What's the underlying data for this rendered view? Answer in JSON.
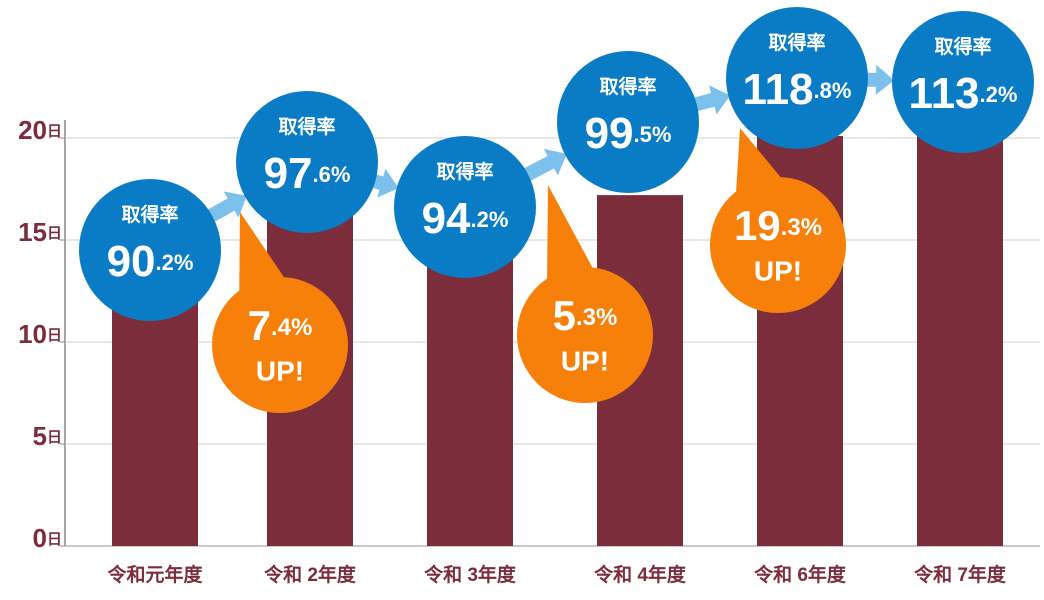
{
  "chart_data": {
    "type": "bar",
    "categories": [
      "令和元年度",
      "令和 2年度",
      "令和 3年度",
      "令和 4年度",
      "令和 6年度",
      "令和 7年度"
    ],
    "values": [
      12.5,
      16.5,
      14.5,
      17.2,
      20.1,
      20.4
    ],
    "color": "#7b2d3c",
    "ylim": [
      0,
      20
    ],
    "yticks": [
      {
        "value": 0,
        "label": "0日"
      },
      {
        "value": 5,
        "label": "5日"
      },
      {
        "value": 10,
        "label": "10日"
      },
      {
        "value": 15,
        "label": "15日"
      },
      {
        "value": 20,
        "label": "20日"
      }
    ],
    "grid": true,
    "rate_bubbles": [
      {
        "title": "取得率",
        "rate": "90.2%"
      },
      {
        "title": "取得率",
        "rate": "97.6%"
      },
      {
        "title": "取得率",
        "rate": "94.2%"
      },
      {
        "title": "取得率",
        "rate": "99.5%"
      },
      {
        "title": "取得率",
        "rate": "118.8%"
      },
      {
        "title": "取得率",
        "rate": "113.2%"
      }
    ],
    "increase_callouts": [
      {
        "value": "7.4%",
        "text": "UP!"
      },
      {
        "value": "5.3%",
        "text": "UP!"
      },
      {
        "value": "19.3%",
        "text": "UP!"
      }
    ]
  }
}
